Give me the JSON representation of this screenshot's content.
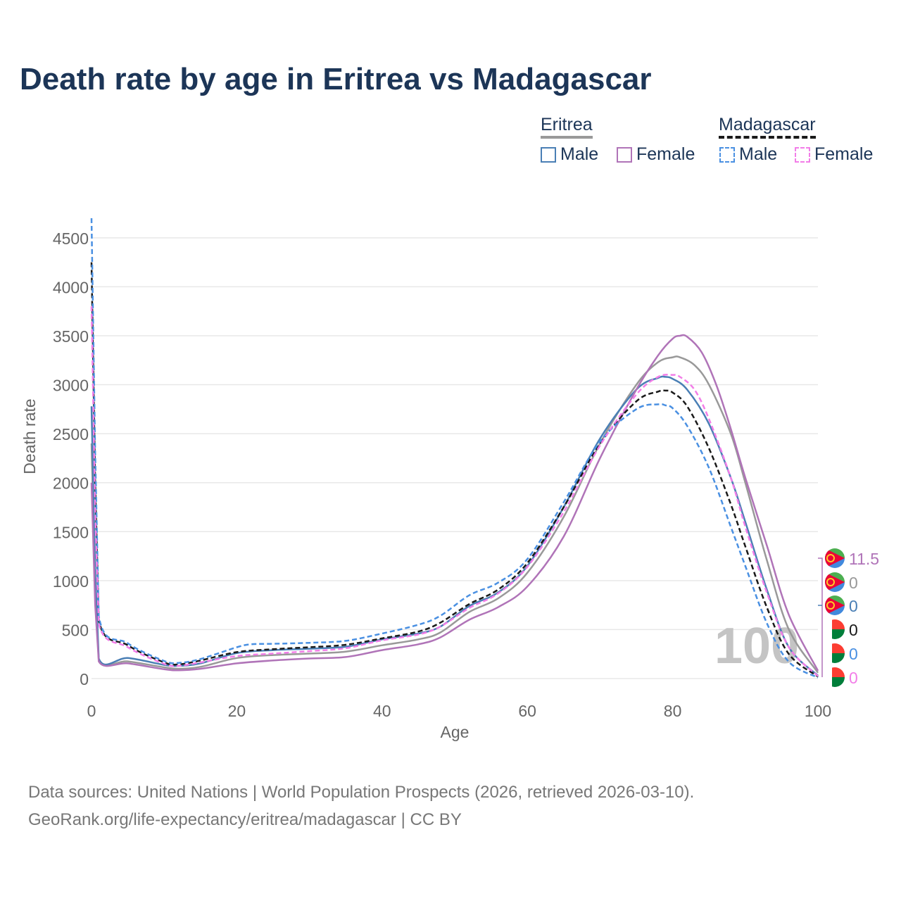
{
  "title": "Death rate by age in Eritrea vs Madagascar",
  "legend": {
    "groups": [
      {
        "name": "Eritrea",
        "items": [
          "Male",
          "Female"
        ]
      },
      {
        "name": "Madagascar",
        "items": [
          "Male",
          "Female"
        ]
      }
    ]
  },
  "footer": {
    "line1": "Data sources: United Nations | World Population Prospects (2026, retrieved 2026-03-10).",
    "line2": "GeoRank.org/life-expectancy/eritrea/madagascar | CC BY"
  },
  "colors": {
    "title": "#1c3557",
    "eritrea_total": "#999999",
    "eritrea_male": "#4a7fb5",
    "eritrea_female": "#b074b8",
    "madagascar_total": "#1a1a1a",
    "madagascar_male": "#4a90e2",
    "madagascar_female": "#f27ee8",
    "grid": "#e8e8e8",
    "axis_text": "#666666"
  },
  "chart_data": {
    "type": "line",
    "title": "Death rate by age in Eritrea vs Madagascar",
    "xlabel": "Age",
    "ylabel": "Death rate",
    "xlim": [
      0,
      100
    ],
    "ylim": [
      0,
      4700
    ],
    "xticks": [
      0,
      20,
      40,
      60,
      80,
      100
    ],
    "yticks": [
      0,
      500,
      1000,
      1500,
      2000,
      2500,
      3000,
      3500,
      4000,
      4500
    ],
    "watermark": "100",
    "series": [
      {
        "name": "Eritrea",
        "country": "Eritrea",
        "sex": "Total",
        "style": "solid",
        "color": "#999999",
        "x": [
          0,
          0.5,
          1,
          5,
          10,
          12,
          15,
          20,
          25,
          30,
          35,
          40,
          45,
          48,
          52,
          56,
          60,
          65,
          70,
          75,
          78,
          80,
          81,
          83,
          85,
          88,
          90,
          93,
          96,
          100
        ],
        "y": [
          2400,
          900,
          190,
          175,
          115,
          100,
          120,
          210,
          240,
          255,
          275,
          340,
          400,
          470,
          680,
          820,
          1080,
          1650,
          2400,
          3000,
          3230,
          3280,
          3280,
          3200,
          3000,
          2500,
          2000,
          1200,
          500,
          60
        ],
        "end_label": "0"
      },
      {
        "name": "Eritrea Male",
        "country": "Eritrea",
        "sex": "Male",
        "style": "solid",
        "color": "#4a7fb5",
        "x": [
          0,
          0.5,
          1,
          5,
          10,
          12,
          15,
          20,
          25,
          30,
          35,
          40,
          45,
          48,
          52,
          56,
          60,
          65,
          70,
          75,
          78,
          79,
          80,
          82,
          85,
          88,
          90,
          93,
          96,
          100
        ],
        "y": [
          2780,
          1100,
          205,
          210,
          140,
          130,
          155,
          260,
          290,
          305,
          325,
          400,
          460,
          530,
          740,
          880,
          1150,
          1750,
          2450,
          2950,
          3070,
          3080,
          3060,
          2950,
          2600,
          2050,
          1600,
          900,
          320,
          30
        ],
        "end_label": "0"
      },
      {
        "name": "Eritrea Female",
        "country": "Eritrea",
        "sex": "Female",
        "style": "solid",
        "color": "#b074b8",
        "x": [
          0,
          0.5,
          1,
          5,
          10,
          12,
          15,
          20,
          25,
          30,
          35,
          40,
          45,
          48,
          52,
          56,
          60,
          65,
          70,
          75,
          78,
          80,
          81,
          82,
          84,
          86,
          88,
          90,
          93,
          96,
          100
        ],
        "y": [
          2000,
          750,
          175,
          155,
          95,
          85,
          100,
          155,
          185,
          205,
          220,
          290,
          350,
          420,
          600,
          730,
          940,
          1450,
          2250,
          2950,
          3300,
          3470,
          3500,
          3490,
          3330,
          3000,
          2550,
          2050,
          1350,
          650,
          80
        ],
        "end_label": "11.5"
      },
      {
        "name": "Madagascar",
        "country": "Madagascar",
        "sex": "Total",
        "style": "dashed",
        "color": "#1a1a1a",
        "x": [
          0,
          0.5,
          1,
          5,
          10,
          12,
          15,
          20,
          25,
          30,
          35,
          40,
          45,
          48,
          52,
          56,
          60,
          65,
          70,
          75,
          78,
          79,
          80,
          82,
          85,
          88,
          90,
          93,
          96,
          100
        ],
        "y": [
          4250,
          2000,
          600,
          340,
          165,
          145,
          185,
          270,
          300,
          320,
          345,
          410,
          480,
          570,
          760,
          910,
          1180,
          1750,
          2400,
          2830,
          2930,
          2940,
          2920,
          2780,
          2350,
          1780,
          1350,
          720,
          250,
          20
        ],
        "end_label": "0"
      },
      {
        "name": "Madagascar Male",
        "country": "Madagascar",
        "sex": "Male",
        "style": "dashed",
        "color": "#4a90e2",
        "x": [
          0,
          0.5,
          1,
          5,
          10,
          12,
          15,
          20,
          22,
          25,
          30,
          35,
          40,
          45,
          48,
          52,
          56,
          60,
          65,
          70,
          75,
          78,
          79,
          80,
          82,
          85,
          88,
          90,
          93,
          96,
          100
        ],
        "y": [
          4700,
          2300,
          640,
          360,
          180,
          160,
          200,
          320,
          350,
          355,
          365,
          385,
          460,
          550,
          640,
          850,
          980,
          1220,
          1800,
          2420,
          2750,
          2800,
          2790,
          2760,
          2580,
          2150,
          1550,
          1150,
          560,
          170,
          10
        ],
        "end_label": "0"
      },
      {
        "name": "Madagascar Female",
        "country": "Madagascar",
        "sex": "Female",
        "style": "dashed",
        "color": "#f27ee8",
        "x": [
          0,
          0.5,
          1,
          5,
          10,
          12,
          15,
          20,
          25,
          30,
          35,
          40,
          45,
          48,
          52,
          56,
          60,
          65,
          70,
          75,
          78,
          80,
          81,
          83,
          85,
          88,
          90,
          93,
          96,
          100
        ],
        "y": [
          3800,
          1700,
          560,
          320,
          150,
          130,
          165,
          230,
          255,
          280,
          310,
          390,
          450,
          530,
          720,
          870,
          1140,
          1700,
          2380,
          2900,
          3080,
          3100,
          3080,
          2950,
          2650,
          2050,
          1550,
          870,
          320,
          25
        ],
        "end_label": "0"
      }
    ]
  }
}
